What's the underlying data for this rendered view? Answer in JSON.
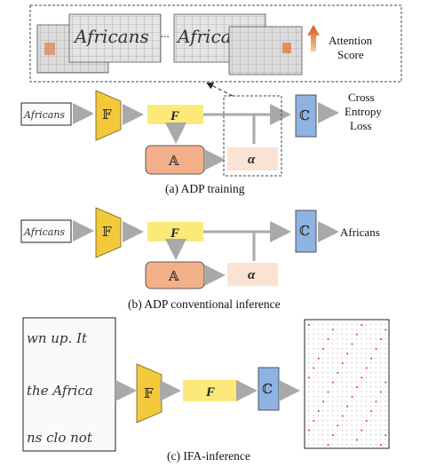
{
  "attention": {
    "label_line1": "Attention",
    "label_line2": "Score",
    "ellipsis": "..."
  },
  "symbols": {
    "encoder": "𝔽",
    "feature": "F",
    "attention_module": "𝔸",
    "alpha": "α",
    "classifier": "ℂ"
  },
  "handwriting": {
    "word": "Africans",
    "page_lines": [
      "wn up. It",
      "the Africa",
      "ns clo not"
    ]
  },
  "panel_a": {
    "caption": "(a) ADP training",
    "output_line1": "Cross",
    "output_line2": "Entropy",
    "output_line3": "Loss"
  },
  "panel_b": {
    "caption": "(b) ADP conventional inference",
    "output": "Africans"
  },
  "panel_c": {
    "caption": "(c) IFA-inference"
  },
  "colors": {
    "encoder": "#f3c93a",
    "feature": "#fde97a",
    "attention": "#f2b08a",
    "alpha": "#fbe3d4",
    "classifier": "#8fb3e0",
    "arrow": "#a9a9a9",
    "highlight": "#e07030"
  }
}
